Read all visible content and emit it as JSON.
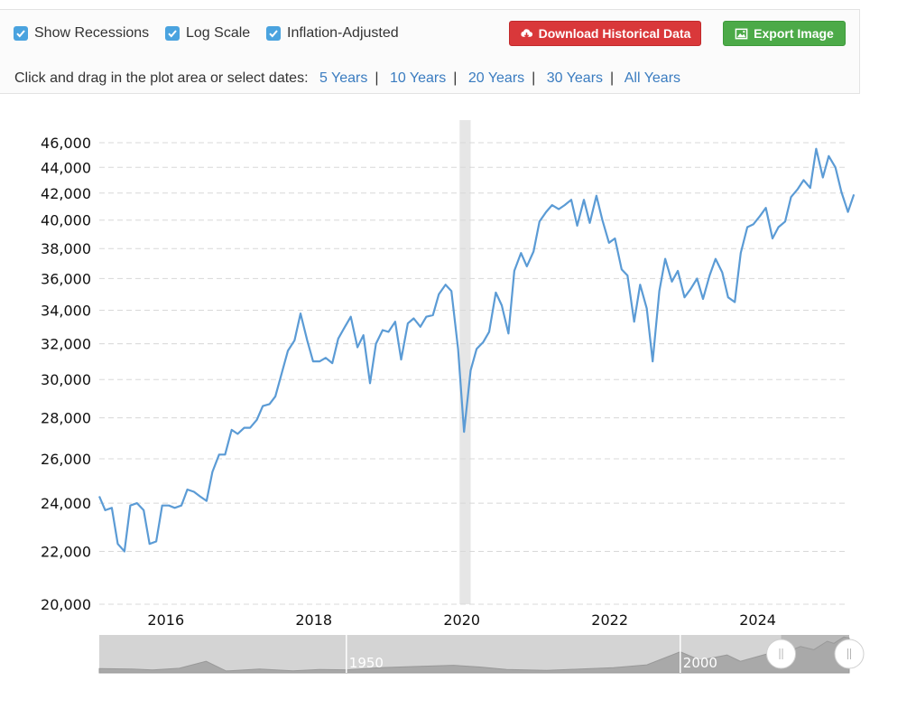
{
  "controls": {
    "show_recessions": {
      "label": "Show Recessions",
      "checked": true
    },
    "log_scale": {
      "label": "Log Scale",
      "checked": true
    },
    "inflation_adjusted": {
      "label": "Inflation-Adjusted",
      "checked": true
    },
    "download_button": "Download Historical Data",
    "export_button": "Export Image",
    "date_prompt": "Click and drag in the plot area or select dates:",
    "ranges": [
      "5 Years",
      "10 Years",
      "20 Years",
      "30 Years",
      "All Years"
    ]
  },
  "colors": {
    "line": "#5b9bd5",
    "recession": "#e6e6e6",
    "download": "#d9383a",
    "export": "#4caa48"
  },
  "chart_data": {
    "type": "line",
    "x_unit": "year",
    "y_scale": "log",
    "xlim": [
      2015.1,
      2025.2
    ],
    "ylim": [
      20000,
      46000
    ],
    "yticks": [
      {
        "value": 20000,
        "label": "20,000"
      },
      {
        "value": 22000,
        "label": "22,000"
      },
      {
        "value": 24000,
        "label": "24,000"
      },
      {
        "value": 26000,
        "label": "26,000"
      },
      {
        "value": 28000,
        "label": "28,000"
      },
      {
        "value": 30000,
        "label": "30,000"
      },
      {
        "value": 32000,
        "label": "32,000"
      },
      {
        "value": 34000,
        "label": "34,000"
      },
      {
        "value": 36000,
        "label": "36,000"
      },
      {
        "value": 38000,
        "label": "38,000"
      },
      {
        "value": 40000,
        "label": "40,000"
      },
      {
        "value": 42000,
        "label": "42,000"
      },
      {
        "value": 44000,
        "label": "44,000"
      },
      {
        "value": 46000,
        "label": "46,000"
      }
    ],
    "xticks": [
      {
        "value": 2016,
        "label": "2016"
      },
      {
        "value": 2018,
        "label": "2018"
      },
      {
        "value": 2020,
        "label": "2020"
      },
      {
        "value": 2022,
        "label": "2022"
      },
      {
        "value": 2024,
        "label": "2024"
      }
    ],
    "grid": true,
    "recessions": [
      [
        2019.97,
        2020.12
      ]
    ],
    "series": [
      {
        "points": [
          [
            2015.1,
            24300
          ],
          [
            2015.18,
            23700
          ],
          [
            2015.27,
            23800
          ],
          [
            2015.35,
            22300
          ],
          [
            2015.44,
            22000
          ],
          [
            2015.52,
            23900
          ],
          [
            2015.61,
            24000
          ],
          [
            2015.7,
            23700
          ],
          [
            2015.78,
            22300
          ],
          [
            2015.87,
            22400
          ],
          [
            2015.95,
            23900
          ],
          [
            2016.04,
            23900
          ],
          [
            2016.12,
            23800
          ],
          [
            2016.21,
            23900
          ],
          [
            2016.29,
            24600
          ],
          [
            2016.38,
            24500
          ],
          [
            2016.46,
            24300
          ],
          [
            2016.55,
            24100
          ],
          [
            2016.63,
            25400
          ],
          [
            2016.72,
            26200
          ],
          [
            2016.8,
            26200
          ],
          [
            2016.89,
            27400
          ],
          [
            2016.97,
            27200
          ],
          [
            2017.06,
            27500
          ],
          [
            2017.14,
            27500
          ],
          [
            2017.23,
            27900
          ],
          [
            2017.31,
            28600
          ],
          [
            2017.4,
            28700
          ],
          [
            2017.48,
            29100
          ],
          [
            2017.57,
            30400
          ],
          [
            2017.65,
            31600
          ],
          [
            2017.74,
            32200
          ],
          [
            2017.82,
            33800
          ],
          [
            2017.91,
            32200
          ],
          [
            2017.99,
            31000
          ],
          [
            2018.08,
            31000
          ],
          [
            2018.16,
            31200
          ],
          [
            2018.25,
            30900
          ],
          [
            2018.33,
            32300
          ],
          [
            2018.42,
            33000
          ],
          [
            2018.5,
            33600
          ],
          [
            2018.59,
            31800
          ],
          [
            2018.67,
            32500
          ],
          [
            2018.76,
            29800
          ],
          [
            2018.84,
            32000
          ],
          [
            2018.93,
            32800
          ],
          [
            2019.01,
            32700
          ],
          [
            2019.1,
            33300
          ],
          [
            2019.18,
            31100
          ],
          [
            2019.27,
            33200
          ],
          [
            2019.35,
            33500
          ],
          [
            2019.44,
            33000
          ],
          [
            2019.52,
            33600
          ],
          [
            2019.61,
            33700
          ],
          [
            2019.69,
            35000
          ],
          [
            2019.78,
            35600
          ],
          [
            2019.86,
            35200
          ],
          [
            2019.95,
            31700
          ],
          [
            2020.03,
            27300
          ],
          [
            2020.12,
            30500
          ],
          [
            2020.2,
            31700
          ],
          [
            2020.29,
            32100
          ],
          [
            2020.37,
            32700
          ],
          [
            2020.46,
            35100
          ],
          [
            2020.54,
            34300
          ],
          [
            2020.63,
            32600
          ],
          [
            2020.71,
            36500
          ],
          [
            2020.8,
            37700
          ],
          [
            2020.88,
            36800
          ],
          [
            2020.97,
            37800
          ],
          [
            2021.05,
            39900
          ],
          [
            2021.14,
            40600
          ],
          [
            2021.22,
            41100
          ],
          [
            2021.31,
            40800
          ],
          [
            2021.39,
            41100
          ],
          [
            2021.48,
            41500
          ],
          [
            2021.56,
            39600
          ],
          [
            2021.65,
            41500
          ],
          [
            2021.73,
            39800
          ],
          [
            2021.82,
            41800
          ],
          [
            2021.9,
            40000
          ],
          [
            2021.99,
            38400
          ],
          [
            2022.07,
            38700
          ],
          [
            2022.16,
            36600
          ],
          [
            2022.24,
            36200
          ],
          [
            2022.33,
            33300
          ],
          [
            2022.41,
            35600
          ],
          [
            2022.5,
            34100
          ],
          [
            2022.58,
            31000
          ],
          [
            2022.67,
            35200
          ],
          [
            2022.75,
            37300
          ],
          [
            2022.84,
            35800
          ],
          [
            2022.92,
            36500
          ],
          [
            2023.01,
            34800
          ],
          [
            2023.09,
            35300
          ],
          [
            2023.18,
            36000
          ],
          [
            2023.26,
            34700
          ],
          [
            2023.35,
            36200
          ],
          [
            2023.43,
            37300
          ],
          [
            2023.52,
            36400
          ],
          [
            2023.6,
            34800
          ],
          [
            2023.69,
            34500
          ],
          [
            2023.77,
            37700
          ],
          [
            2023.86,
            39500
          ],
          [
            2023.94,
            39700
          ],
          [
            2024.03,
            40300
          ],
          [
            2024.11,
            40900
          ],
          [
            2024.2,
            38700
          ],
          [
            2024.28,
            39500
          ],
          [
            2024.37,
            39900
          ],
          [
            2024.45,
            41700
          ],
          [
            2024.54,
            42300
          ],
          [
            2024.62,
            43000
          ],
          [
            2024.71,
            42400
          ],
          [
            2024.79,
            45500
          ],
          [
            2024.88,
            43200
          ],
          [
            2024.96,
            44900
          ],
          [
            2025.05,
            44000
          ],
          [
            2025.13,
            42100
          ],
          [
            2025.22,
            40600
          ],
          [
            2025.3,
            41900
          ]
        ]
      }
    ]
  },
  "navigator": {
    "labels": [
      {
        "value": 1950,
        "label": "1950"
      },
      {
        "value": 2000,
        "label": "2000"
      }
    ],
    "range": [
      1913,
      2025.3
    ],
    "selected": [
      2015.1,
      2025.3
    ],
    "overview": [
      [
        1913,
        20
      ],
      [
        1918,
        18
      ],
      [
        1921,
        14
      ],
      [
        1925,
        22
      ],
      [
        1929,
        55
      ],
      [
        1932,
        9
      ],
      [
        1937,
        18
      ],
      [
        1942,
        10
      ],
      [
        1946,
        16
      ],
      [
        1950,
        14
      ],
      [
        1955,
        25
      ],
      [
        1960,
        30
      ],
      [
        1966,
        36
      ],
      [
        1970,
        28
      ],
      [
        1974,
        16
      ],
      [
        1980,
        12
      ],
      [
        1985,
        18
      ],
      [
        1990,
        25
      ],
      [
        1995,
        38
      ],
      [
        2000,
        100
      ],
      [
        2003,
        60
      ],
      [
        2007,
        85
      ],
      [
        2009,
        55
      ],
      [
        2013,
        90
      ],
      [
        2016,
        100
      ],
      [
        2018,
        125
      ],
      [
        2020,
        110
      ],
      [
        2022,
        150
      ],
      [
        2023,
        140
      ],
      [
        2024.5,
        170
      ],
      [
        2025.3,
        165
      ]
    ]
  }
}
